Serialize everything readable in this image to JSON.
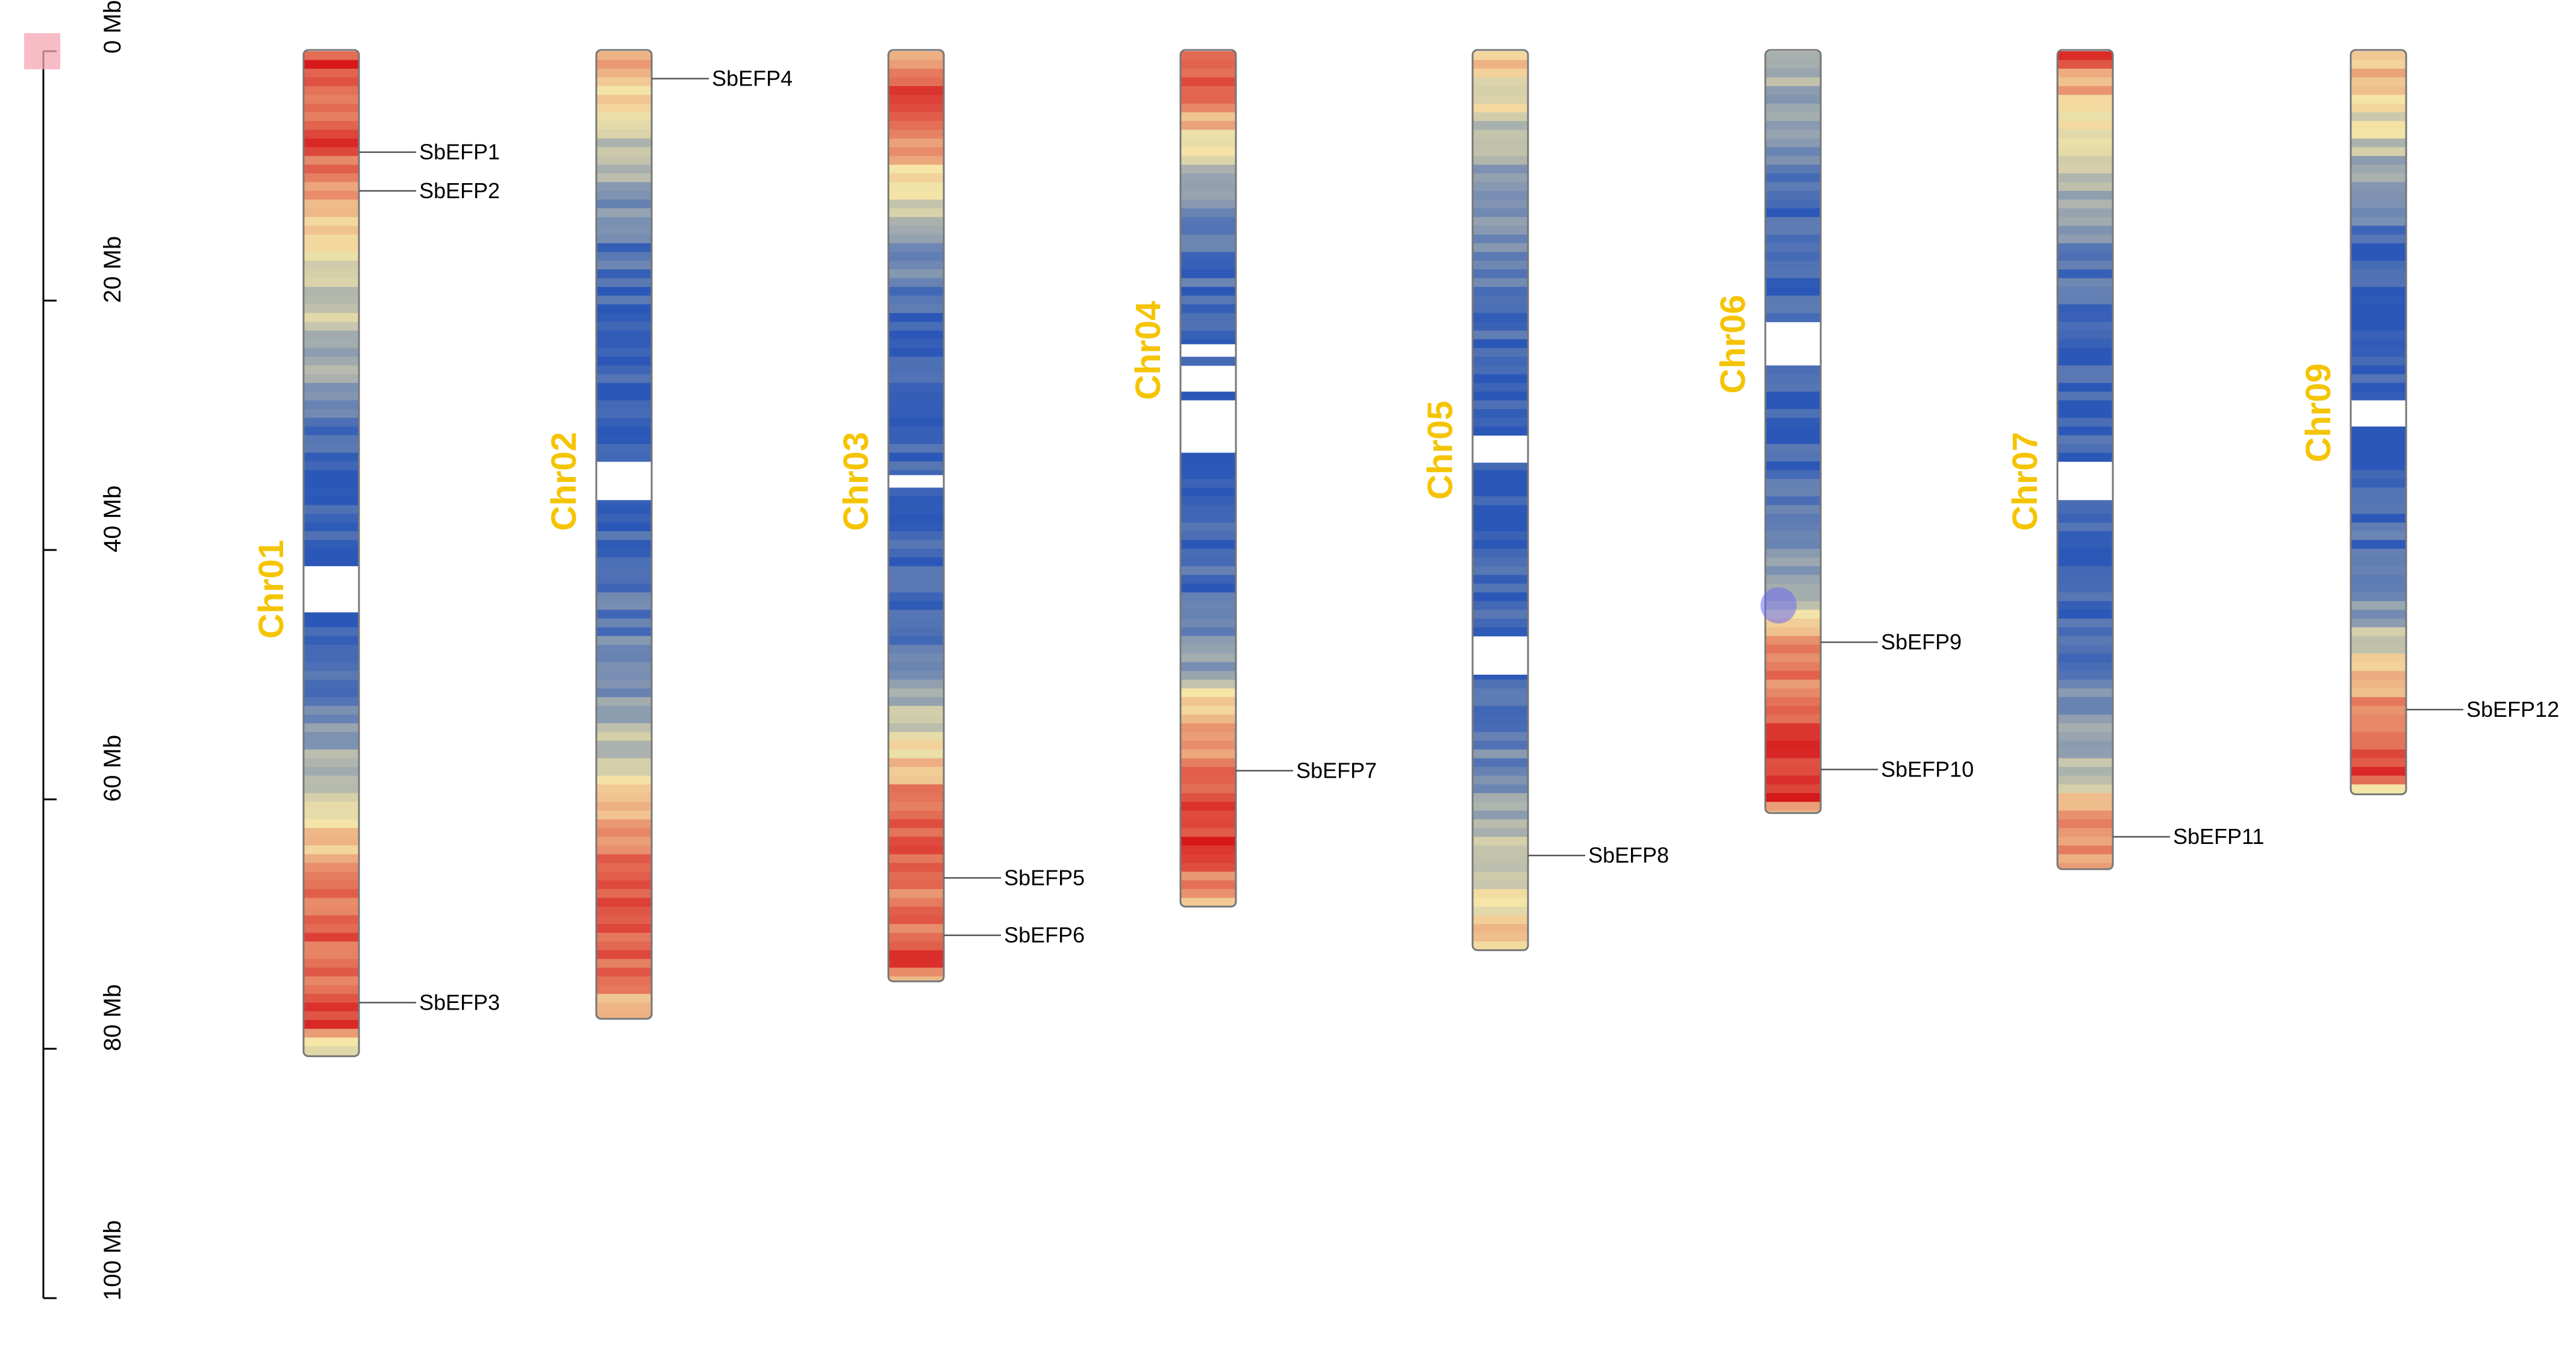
{
  "chart_data": {
    "type": "chromosome-map",
    "axis": {
      "unit": "Mb",
      "range": [
        0,
        100
      ],
      "ticks": [
        {
          "value": 0,
          "label": "0 Mb"
        },
        {
          "value": 20,
          "label": "20 Mb"
        },
        {
          "value": 40,
          "label": "40 Mb"
        },
        {
          "value": 60,
          "label": "60 Mb"
        },
        {
          "value": 80,
          "label": "80 Mb"
        },
        {
          "value": 100,
          "label": "100 Mb"
        }
      ]
    },
    "colors": {
      "high": "#d7191c",
      "mid": "#f5e6a8",
      "low": "#2b58b8",
      "label": "#f5c400",
      "marker_pink": "#f4a6b3",
      "marker_blue": "#6c6cf0"
    },
    "chromosomes": [
      {
        "name": "Chr01",
        "length": 80.5,
        "gaps": [
          [
            41.3,
            45.0
          ]
        ],
        "profile": [
          [
            0,
            0.85
          ],
          [
            1,
            0.95
          ],
          [
            4,
            0.75
          ],
          [
            7,
            0.9
          ],
          [
            10,
            0.7
          ],
          [
            14,
            0.55
          ],
          [
            18,
            0.45
          ],
          [
            22,
            0.35
          ],
          [
            26,
            0.25
          ],
          [
            29,
            0.1
          ],
          [
            33,
            0.05
          ],
          [
            40,
            0.02
          ],
          [
            46,
            0.05
          ],
          [
            52,
            0.15
          ],
          [
            56,
            0.3
          ],
          [
            60,
            0.45
          ],
          [
            63,
            0.55
          ],
          [
            66,
            0.7
          ],
          [
            70,
            0.85
          ],
          [
            75,
            0.75
          ],
          [
            78,
            0.95
          ],
          [
            80,
            0.45
          ]
        ],
        "genes": [
          {
            "name": "SbEFP1",
            "pos": 8.1
          },
          {
            "name": "SbEFP2",
            "pos": 11.2
          },
          {
            "name": "SbEFP3",
            "pos": 76.3
          }
        ]
      },
      {
        "name": "Chr02",
        "length": 77.5,
        "gaps": [
          [
            33.0,
            36.0
          ]
        ],
        "profile": [
          [
            0,
            0.7
          ],
          [
            3,
            0.55
          ],
          [
            6,
            0.45
          ],
          [
            9,
            0.35
          ],
          [
            12,
            0.2
          ],
          [
            16,
            0.1
          ],
          [
            20,
            0.05
          ],
          [
            30,
            0.0
          ],
          [
            40,
            0.05
          ],
          [
            48,
            0.15
          ],
          [
            54,
            0.3
          ],
          [
            58,
            0.45
          ],
          [
            62,
            0.7
          ],
          [
            66,
            0.8
          ],
          [
            70,
            0.88
          ],
          [
            75,
            0.75
          ],
          [
            77,
            0.55
          ]
        ],
        "genes": [
          {
            "name": "SbEFP4",
            "pos": 2.2
          }
        ]
      },
      {
        "name": "Chr03",
        "length": 74.5,
        "gaps": [
          [
            34.0,
            35.0
          ]
        ],
        "profile": [
          [
            0,
            0.7
          ],
          [
            4,
            0.9
          ],
          [
            8,
            0.65
          ],
          [
            11,
            0.45
          ],
          [
            14,
            0.3
          ],
          [
            18,
            0.15
          ],
          [
            22,
            0.05
          ],
          [
            35,
            0.02
          ],
          [
            45,
            0.05
          ],
          [
            50,
            0.15
          ],
          [
            53,
            0.35
          ],
          [
            56,
            0.5
          ],
          [
            59,
            0.7
          ],
          [
            64,
            0.85
          ],
          [
            69,
            0.75
          ],
          [
            73,
            0.9
          ],
          [
            74,
            0.6
          ]
        ],
        "genes": [
          {
            "name": "SbEFP5",
            "pos": 66.3
          },
          {
            "name": "SbEFP6",
            "pos": 70.9
          }
        ]
      },
      {
        "name": "Chr04",
        "length": 68.5,
        "gaps": [
          [
            23.5,
            24.5
          ],
          [
            25.5,
            27.0
          ],
          [
            28.0,
            32.0
          ]
        ],
        "profile": [
          [
            0,
            0.85
          ],
          [
            3,
            0.8
          ],
          [
            6,
            0.6
          ],
          [
            9,
            0.4
          ],
          [
            12,
            0.25
          ],
          [
            16,
            0.1
          ],
          [
            22,
            0.03
          ],
          [
            35,
            0.02
          ],
          [
            45,
            0.08
          ],
          [
            50,
            0.3
          ],
          [
            52,
            0.5
          ],
          [
            55,
            0.7
          ],
          [
            60,
            0.85
          ],
          [
            64,
            0.95
          ],
          [
            67,
            0.7
          ],
          [
            68,
            0.55
          ]
        ],
        "genes": [
          {
            "name": "SbEFP7",
            "pos": 57.7
          }
        ]
      },
      {
        "name": "Chr05",
        "length": 72.0,
        "gaps": [
          [
            31.0,
            33.0
          ],
          [
            47.0,
            50.0
          ]
        ],
        "profile": [
          [
            0,
            0.6
          ],
          [
            3,
            0.5
          ],
          [
            6,
            0.4
          ],
          [
            9,
            0.3
          ],
          [
            13,
            0.2
          ],
          [
            18,
            0.1
          ],
          [
            24,
            0.03
          ],
          [
            40,
            0.02
          ],
          [
            52,
            0.08
          ],
          [
            58,
            0.2
          ],
          [
            62,
            0.3
          ],
          [
            66,
            0.45
          ],
          [
            70,
            0.55
          ],
          [
            72,
            0.6
          ]
        ],
        "genes": [
          {
            "name": "SbEFP8",
            "pos": 64.5
          }
        ]
      },
      {
        "name": "Chr06",
        "length": 61.0,
        "gaps": [
          [
            22.0,
            25.0
          ]
        ],
        "profile": [
          [
            0,
            0.4
          ],
          [
            3,
            0.3
          ],
          [
            6,
            0.2
          ],
          [
            10,
            0.1
          ],
          [
            14,
            0.05
          ],
          [
            30,
            0.02
          ],
          [
            36,
            0.1
          ],
          [
            40,
            0.2
          ],
          [
            43,
            0.35
          ],
          [
            46,
            0.5
          ],
          [
            48,
            0.7
          ],
          [
            52,
            0.8
          ],
          [
            56,
            0.9
          ],
          [
            60,
            0.95
          ],
          [
            61,
            0.6
          ]
        ],
        "genes": [
          {
            "name": "SbEFP9",
            "pos": 47.4
          },
          {
            "name": "SbEFP10",
            "pos": 57.6
          }
        ]
      },
      {
        "name": "Chr07",
        "length": 65.5,
        "gaps": [
          [
            33.0,
            36.0
          ]
        ],
        "profile": [
          [
            0,
            0.9
          ],
          [
            2,
            0.7
          ],
          [
            5,
            0.55
          ],
          [
            8,
            0.4
          ],
          [
            11,
            0.3
          ],
          [
            14,
            0.2
          ],
          [
            18,
            0.1
          ],
          [
            24,
            0.03
          ],
          [
            40,
            0.02
          ],
          [
            48,
            0.08
          ],
          [
            53,
            0.2
          ],
          [
            57,
            0.35
          ],
          [
            60,
            0.55
          ],
          [
            63,
            0.75
          ],
          [
            65,
            0.6
          ]
        ],
        "genes": [
          {
            "name": "SbEFP11",
            "pos": 63.0
          }
        ]
      },
      {
        "name": "Chr09",
        "length": 59.5,
        "gaps": [
          [
            28.0,
            30.0
          ]
        ],
        "profile": [
          [
            0,
            0.65
          ],
          [
            3,
            0.55
          ],
          [
            6,
            0.45
          ],
          [
            9,
            0.3
          ],
          [
            12,
            0.15
          ],
          [
            16,
            0.05
          ],
          [
            26,
            0.02
          ],
          [
            36,
            0.05
          ],
          [
            42,
            0.12
          ],
          [
            46,
            0.3
          ],
          [
            49,
            0.5
          ],
          [
            52,
            0.7
          ],
          [
            55,
            0.85
          ],
          [
            58,
            0.95
          ],
          [
            59,
            0.5
          ]
        ],
        "genes": [
          {
            "name": "SbEFP12",
            "pos": 52.8
          }
        ]
      }
    ]
  }
}
